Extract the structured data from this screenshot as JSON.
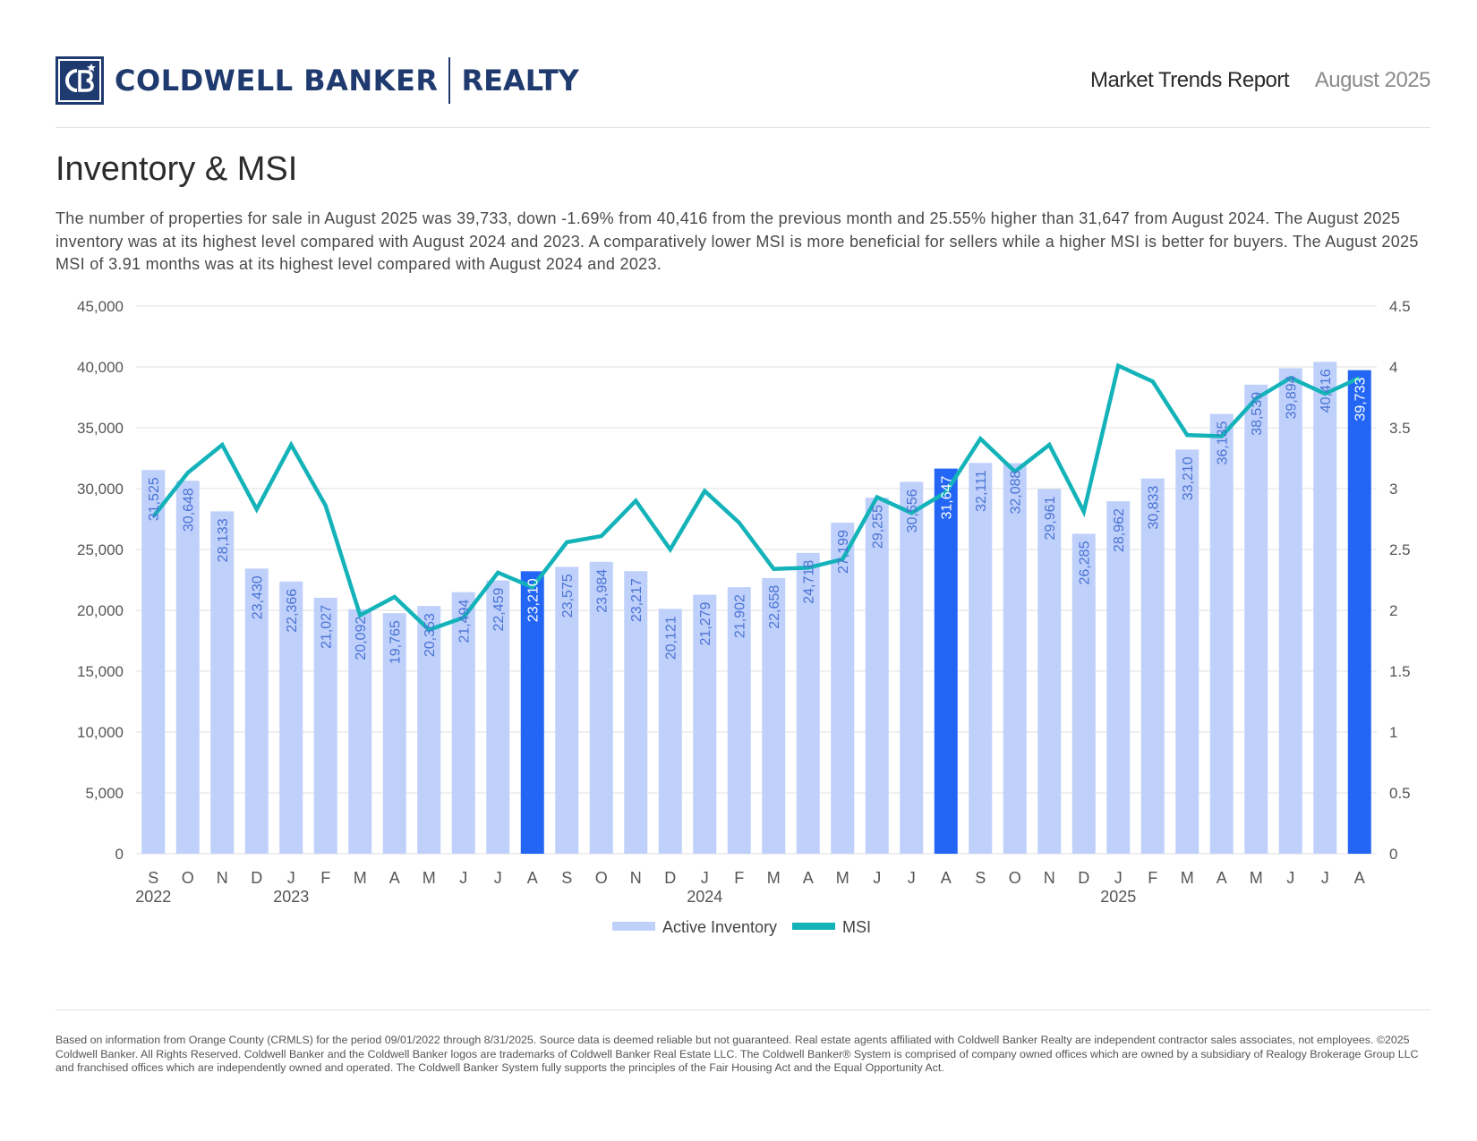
{
  "header": {
    "brand_left": "COLDWELL BANKER",
    "brand_right": "REALTY",
    "report_title": "Market Trends Report",
    "report_date": "August 2025"
  },
  "page": {
    "title": "Inventory & MSI",
    "description": "The number of properties for sale in August 2025 was 39,733, down -1.69% from 40,416 from the previous month and 25.55% higher than 31,647 from August 2024. The August 2025 inventory was at its highest level compared with August 2024 and 2023. A comparatively lower MSI is more beneficial for sellers while a higher MSI is better for buyers. The August 2025 MSI of 3.91 months was at its highest level compared with August 2024 and 2023.",
    "footer": "Based on information from Orange County (CRMLS) for the period 09/01/2022 through 8/31/2025. Source data is deemed reliable but not guaranteed. Real estate agents affiliated with Coldwell Banker Realty are independent contractor sales associates, not employees. ©2025 Coldwell Banker. All Rights Reserved. Coldwell Banker and the Coldwell Banker logos are trademarks of Coldwell Banker Real Estate LLC. The Coldwell Banker® System is comprised of company owned offices which are owned by a subsidiary of Realogy Brokerage Group LLC and franchised offices which are independently owned and operated. The Coldwell Banker System fully supports the principles of the Fair Housing Act and the Equal Opportunity Act."
  },
  "colors": {
    "bar": "#bfd0fb",
    "bar_highlight": "#2366f5",
    "bar_label": "#4a73d4",
    "bar_label_highlight": "#ffffff",
    "line": "#13b3b9",
    "grid": "#e2e2e2",
    "axis_text": "#555555"
  },
  "chart_data": {
    "type": "bar+line",
    "categories": [
      "S",
      "O",
      "N",
      "D",
      "J",
      "F",
      "M",
      "A",
      "M",
      "J",
      "J",
      "A",
      "S",
      "O",
      "N",
      "D",
      "J",
      "F",
      "M",
      "A",
      "M",
      "J",
      "J",
      "A",
      "S",
      "O",
      "N",
      "D",
      "J",
      "F",
      "M",
      "A",
      "M",
      "J",
      "J",
      "A"
    ],
    "year_labels": [
      {
        "index": 0,
        "label": "2022"
      },
      {
        "index": 4,
        "label": "2023"
      },
      {
        "index": 16,
        "label": "2024"
      },
      {
        "index": 28,
        "label": "2025"
      }
    ],
    "series": [
      {
        "name": "Active Inventory",
        "type": "bar",
        "axis": "left",
        "values": [
          31525,
          30648,
          28133,
          23430,
          22366,
          21027,
          20092,
          19765,
          20353,
          21494,
          22459,
          23210,
          23575,
          23984,
          23217,
          20121,
          21279,
          21902,
          22658,
          24718,
          27199,
          29255,
          30556,
          31647,
          32111,
          32088,
          29961,
          26285,
          28962,
          30833,
          33210,
          36135,
          38539,
          39894,
          40416,
          39733
        ],
        "labels": [
          "31,525",
          "30,648",
          "28,133",
          "23,430",
          "22,366",
          "21,027",
          "20,092",
          "19,765",
          "20,353",
          "21,494",
          "22,459",
          "23,210",
          "23,575",
          "23,984",
          "23,217",
          "20,121",
          "21,279",
          "21,902",
          "22,658",
          "24,718",
          "27,199",
          "29,255",
          "30,556",
          "31,647",
          "32,111",
          "32,088",
          "29,961",
          "26,285",
          "28,962",
          "30,833",
          "33,210",
          "36,135",
          "38,539",
          "39,894",
          "40,416",
          "39,733"
        ],
        "highlight_indices": [
          11,
          23,
          35
        ]
      },
      {
        "name": "MSI",
        "type": "line",
        "axis": "right",
        "values": [
          2.77,
          3.13,
          3.36,
          2.83,
          3.36,
          2.86,
          1.96,
          2.11,
          1.84,
          1.94,
          2.31,
          2.19,
          2.56,
          2.61,
          2.9,
          2.5,
          2.98,
          2.72,
          2.34,
          2.35,
          2.42,
          2.93,
          2.8,
          2.97,
          3.41,
          3.14,
          3.36,
          2.81,
          4.01,
          3.88,
          3.44,
          3.43,
          3.74,
          3.91,
          3.78,
          3.91
        ]
      }
    ],
    "y_left": {
      "min": 0,
      "max": 45000,
      "ticks": [
        "0",
        "5,000",
        "10,000",
        "15,000",
        "20,000",
        "25,000",
        "30,000",
        "35,000",
        "40,000",
        "45,000"
      ]
    },
    "y_right": {
      "min": 0,
      "max": 4.5,
      "ticks": [
        "0",
        "0.5",
        "1",
        "1.5",
        "2",
        "2.5",
        "3",
        "3.5",
        "4",
        "4.5"
      ]
    },
    "legend": {
      "position": "bottom-center",
      "items": [
        "Active Inventory",
        "MSI"
      ]
    },
    "grid": true
  }
}
